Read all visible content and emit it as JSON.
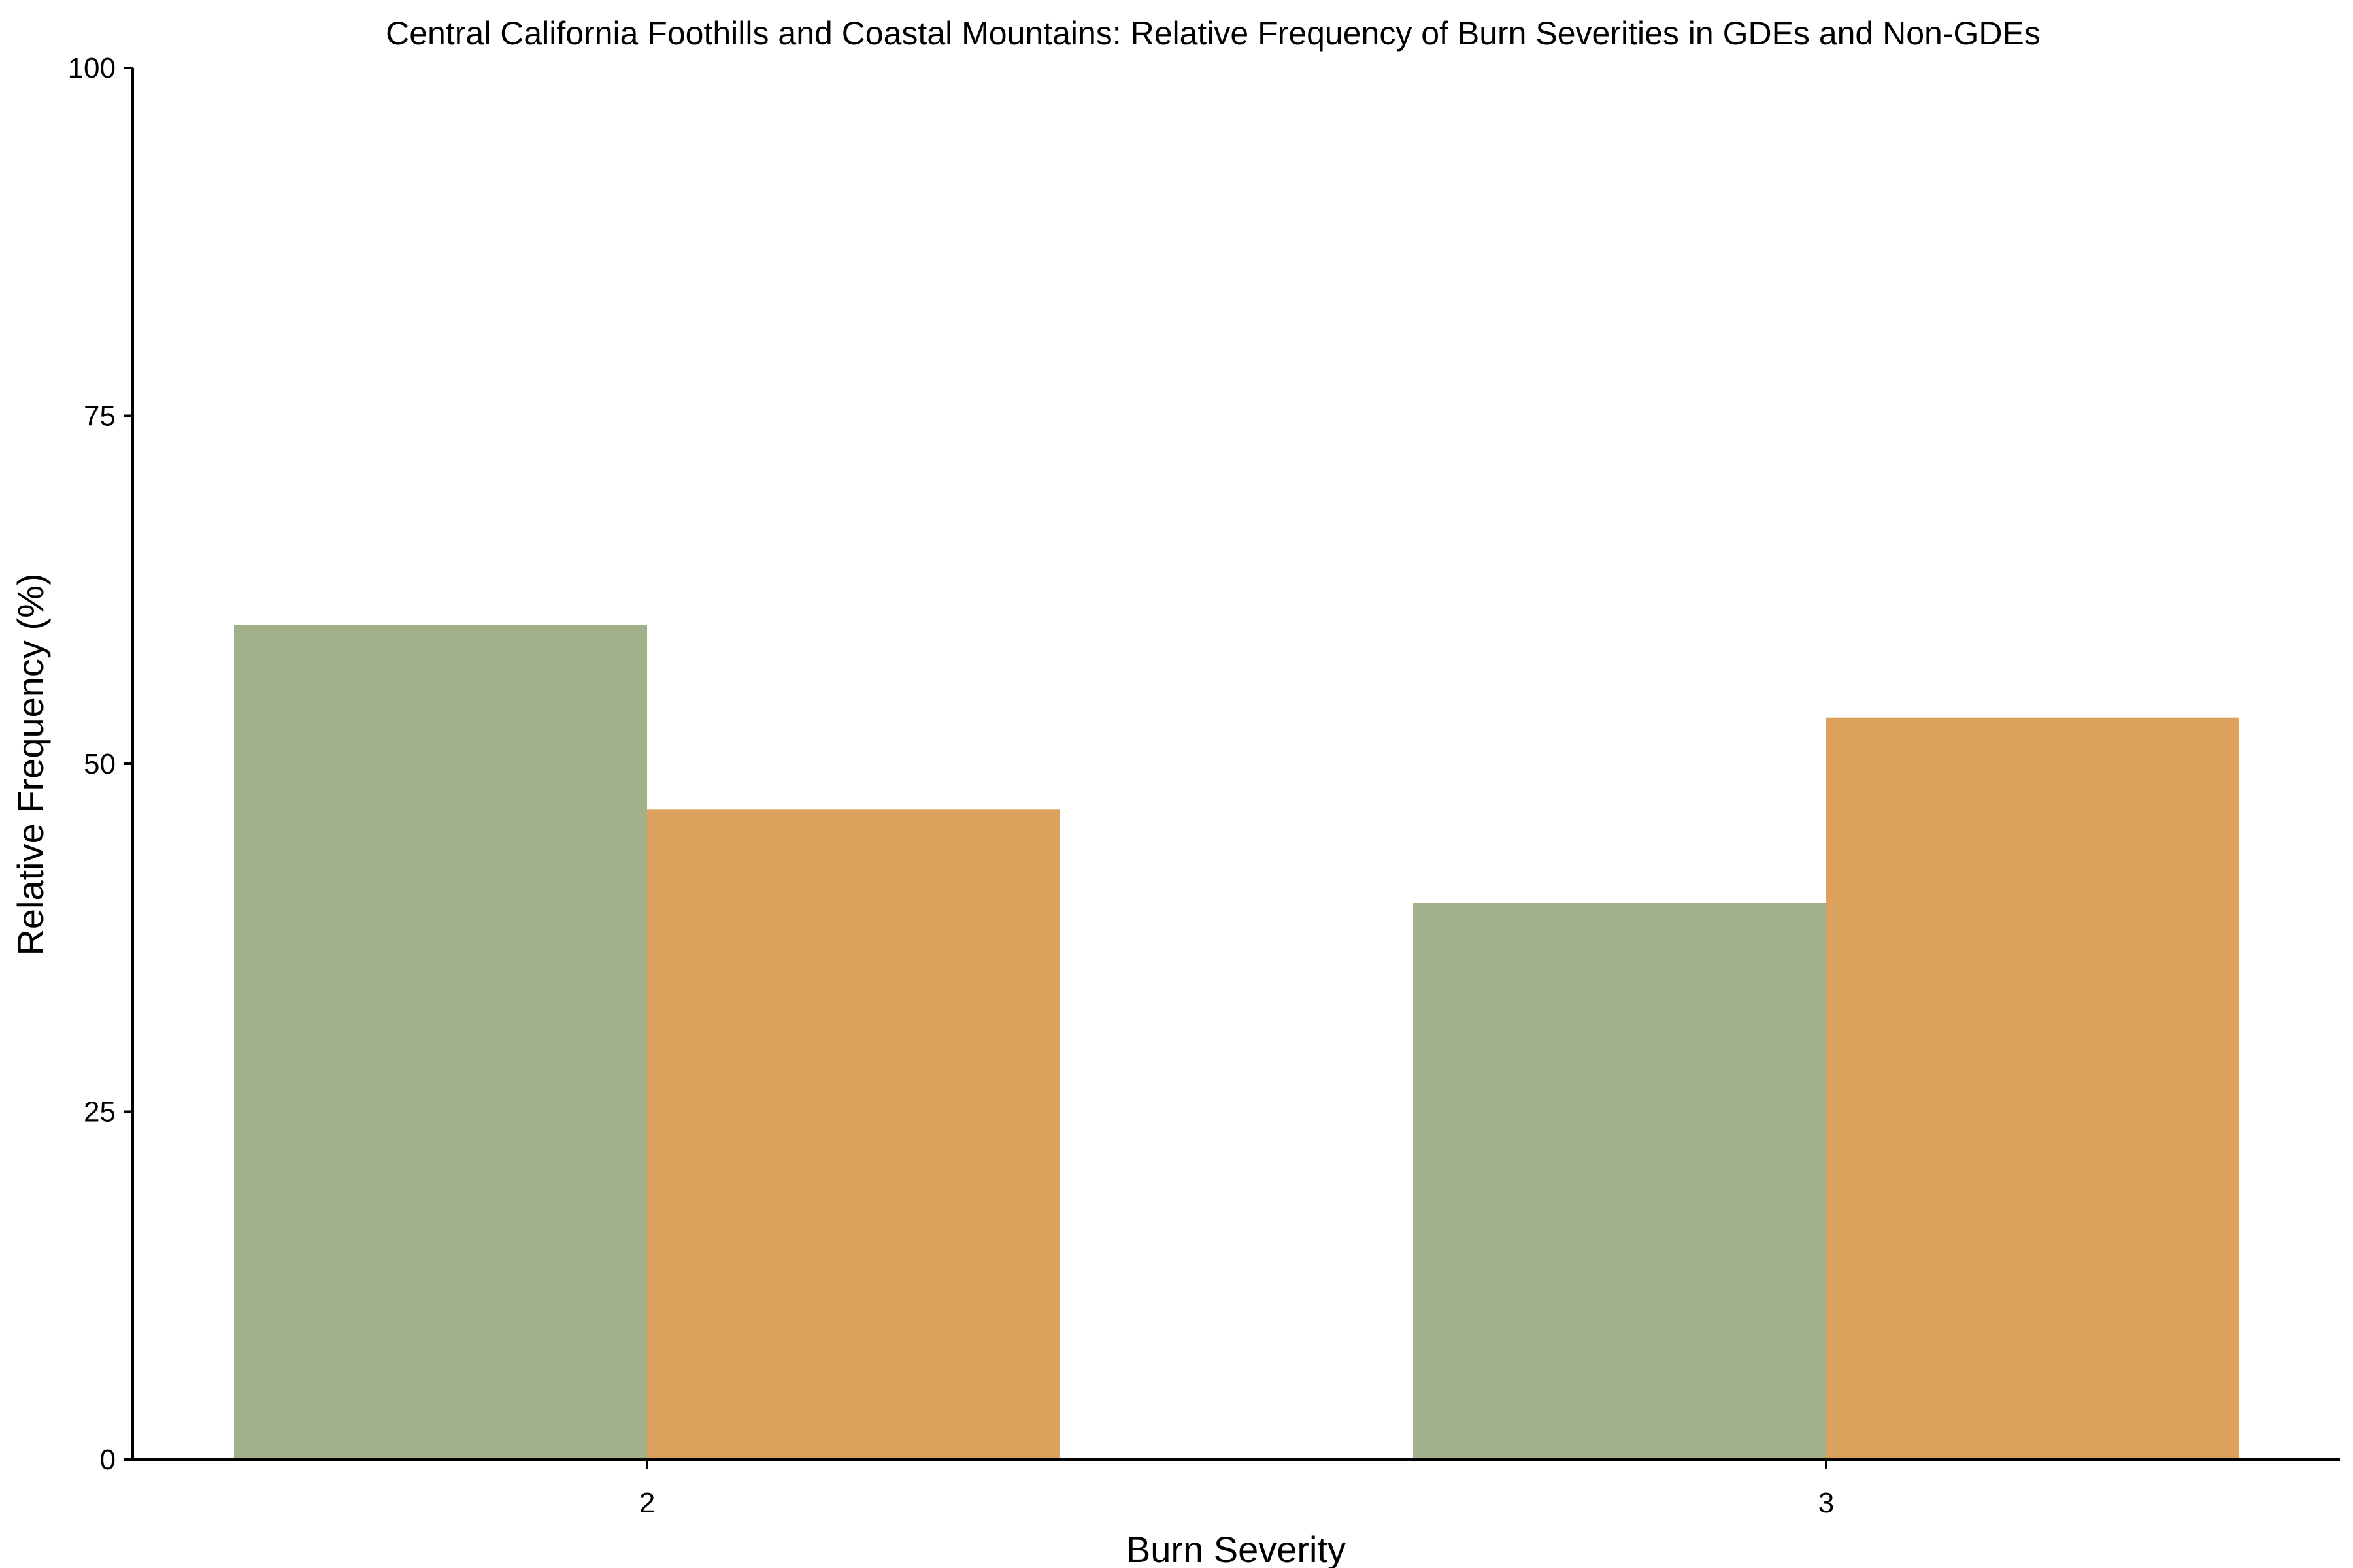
{
  "chart_data": {
    "type": "bar",
    "title": "Central California Foothills and Coastal Mountains: Relative Frequency of Burn Severities in GDEs and Non-GDEs",
    "xlabel": "Burn Severity",
    "ylabel": "Relative Frequency (%)",
    "categories": [
      "2",
      "3"
    ],
    "series": [
      {
        "values": [
          60.0,
          40.0
        ],
        "color": "#a2b189"
      },
      {
        "values": [
          46.7,
          53.3
        ],
        "color": "#dca15d"
      }
    ],
    "ylim": [
      0,
      100
    ],
    "yticks": [
      "0",
      "25",
      "50",
      "75",
      "100"
    ],
    "grid": false,
    "legend": "none"
  }
}
